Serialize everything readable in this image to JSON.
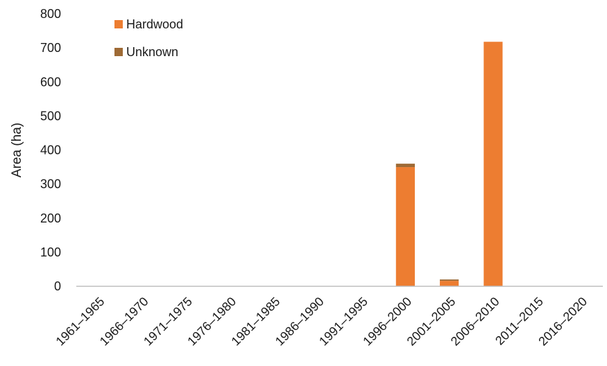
{
  "chart_data": {
    "type": "bar",
    "stacked": true,
    "title": "",
    "xlabel": "",
    "ylabel": "Area (ha)",
    "ylim": [
      0,
      800
    ],
    "yticks": [
      0,
      100,
      200,
      300,
      400,
      500,
      600,
      700,
      800
    ],
    "grid": false,
    "legend_position": "top-left",
    "categories": [
      "1961–1965",
      "1966–1970",
      "1971–1975",
      "1976–1980",
      "1981–1985",
      "1986–1990",
      "1991–1995",
      "1996–2000",
      "2001–2005",
      "2006–2010",
      "2011–2015",
      "2016–2020"
    ],
    "series": [
      {
        "name": "Hardwood",
        "color": "#ED7D31",
        "values": [
          0,
          0,
          0,
          0,
          0,
          0,
          0,
          350,
          16,
          718,
          0,
          0
        ]
      },
      {
        "name": "Unknown",
        "color": "#9E6A35",
        "values": [
          0,
          0,
          0,
          0,
          0,
          0,
          0,
          10,
          4,
          0,
          0,
          0
        ]
      }
    ]
  }
}
